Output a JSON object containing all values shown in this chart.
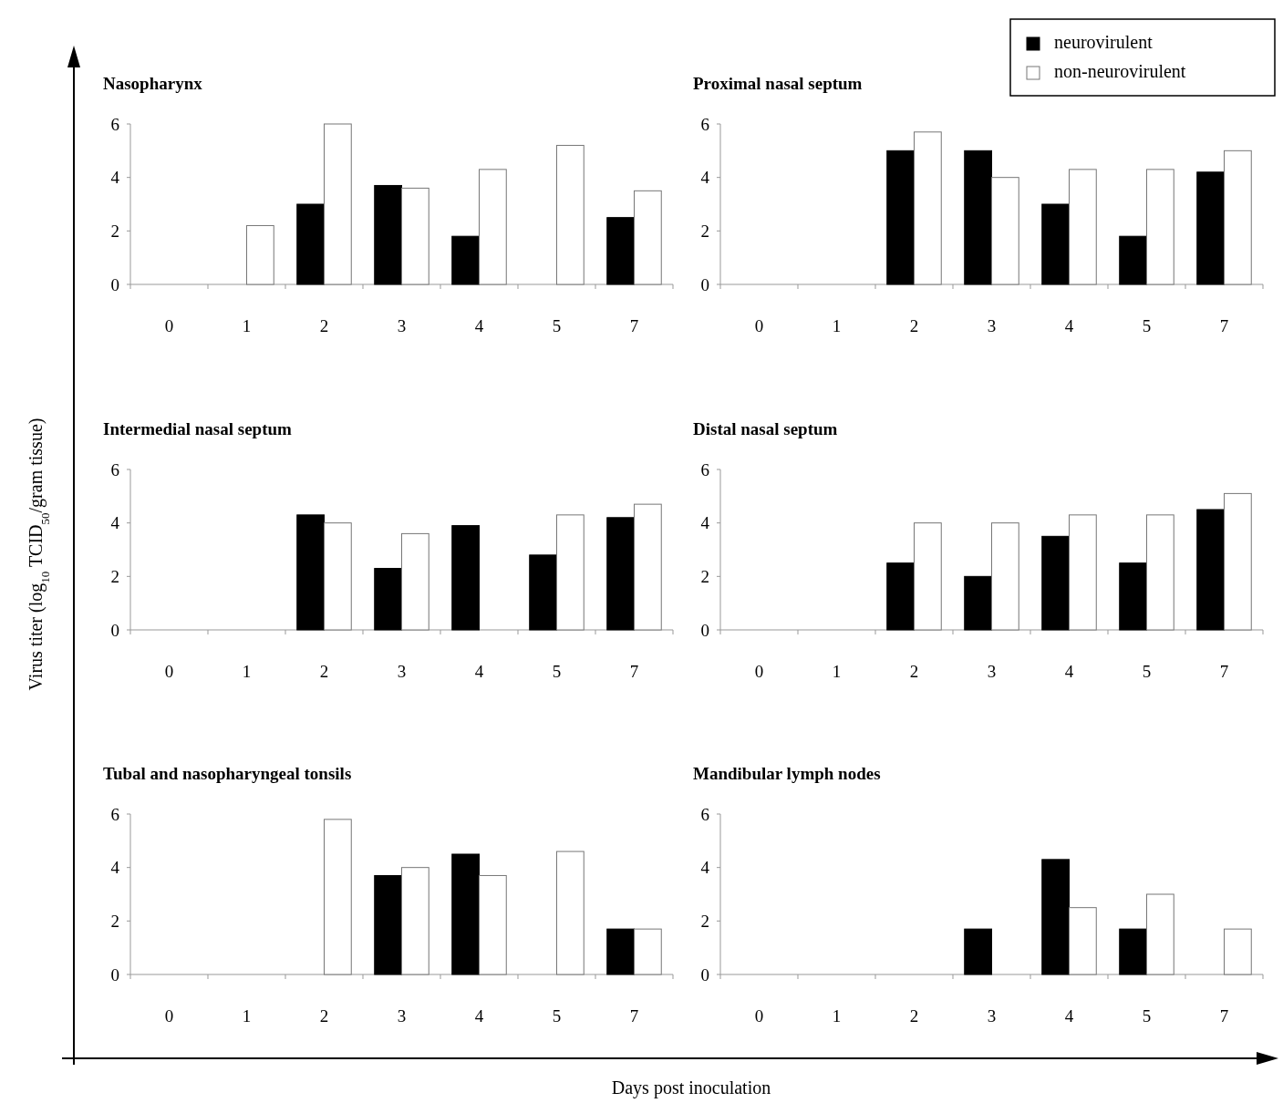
{
  "chart_data": [
    {
      "type": "bar",
      "title": "Nasopharynx",
      "categories": [
        "0",
        "1",
        "2",
        "3",
        "4",
        "5",
        "7"
      ],
      "ylim": [
        0,
        6
      ],
      "yticks": [
        0,
        2,
        4,
        6
      ],
      "grid": false,
      "series": [
        {
          "color": "#000000",
          "values": [
            null,
            null,
            3,
            3.7,
            1.8,
            null,
            2.5
          ]
        },
        {
          "color": "#ffffff",
          "values": [
            null,
            2.2,
            6,
            3.6,
            4.3,
            5.2,
            3.5
          ]
        }
      ]
    },
    {
      "type": "bar",
      "title": "Proximal nasal septum",
      "categories": [
        "0",
        "1",
        "2",
        "3",
        "4",
        "5",
        "7"
      ],
      "ylim": [
        0,
        6
      ],
      "yticks": [
        0,
        2,
        4,
        6
      ],
      "grid": false,
      "legend": "top right",
      "series": [
        {
          "name": "neurovirulent",
          "color": "#000000",
          "values": [
            null,
            null,
            5,
            5,
            3,
            1.8,
            4.2
          ]
        },
        {
          "name": "non-neurovirulent",
          "color": "#ffffff",
          "values": [
            null,
            null,
            5.7,
            4,
            4.3,
            4.3,
            5
          ]
        }
      ]
    },
    {
      "type": "bar",
      "title": "Intermedial nasal septum",
      "ylabel": "Virus titer (log$_{10}$ TCID$_{50}$/gram tissue)",
      "categories": [
        "0",
        "1",
        "2",
        "3",
        "4",
        "5",
        "7"
      ],
      "ylim": [
        0,
        6
      ],
      "yticks": [
        0,
        2,
        4,
        6
      ],
      "grid": false,
      "series": [
        {
          "color": "#000000",
          "values": [
            null,
            null,
            4.3,
            2.3,
            3.9,
            2.8,
            4.2
          ]
        },
        {
          "color": "#ffffff",
          "values": [
            null,
            null,
            4,
            3.6,
            null,
            4.3,
            4.7
          ]
        }
      ]
    },
    {
      "type": "bar",
      "title": "Distal nasal septum",
      "categories": [
        "0",
        "1",
        "2",
        "3",
        "4",
        "5",
        "7"
      ],
      "ylim": [
        0,
        6
      ],
      "yticks": [
        0,
        2,
        4,
        6
      ],
      "grid": false,
      "series": [
        {
          "color": "#000000",
          "values": [
            null,
            null,
            2.5,
            2,
            3.5,
            2.5,
            4.5
          ]
        },
        {
          "color": "#ffffff",
          "values": [
            null,
            null,
            4,
            4,
            4.3,
            4.3,
            5.1
          ]
        }
      ]
    },
    {
      "type": "bar",
      "title": "Tubal and nasopharyngeal tonsils",
      "xlabel": "Days post inoculation",
      "categories": [
        "0",
        "1",
        "2",
        "3",
        "4",
        "5",
        "7"
      ],
      "ylim": [
        0,
        6
      ],
      "yticks": [
        0,
        2,
        4,
        6
      ],
      "grid": false,
      "series": [
        {
          "color": "#000000",
          "values": [
            null,
            null,
            null,
            3.7,
            4.5,
            null,
            1.7
          ]
        },
        {
          "color": "#ffffff",
          "values": [
            null,
            null,
            5.8,
            4,
            3.7,
            4.6,
            1.7
          ]
        }
      ]
    },
    {
      "type": "bar",
      "title": "Mandibular lymph nodes",
      "categories": [
        "0",
        "1",
        "2",
        "3",
        "4",
        "5",
        "7"
      ],
      "ylim": [
        0,
        6
      ],
      "yticks": [
        0,
        2,
        4,
        6
      ],
      "grid": false,
      "series": [
        {
          "color": "#000000",
          "values": [
            null,
            null,
            null,
            1.7,
            4.3,
            1.7,
            null
          ]
        },
        {
          "color": "#ffffff",
          "values": [
            null,
            null,
            null,
            null,
            2.5,
            3,
            1.7
          ]
        }
      ]
    }
  ]
}
